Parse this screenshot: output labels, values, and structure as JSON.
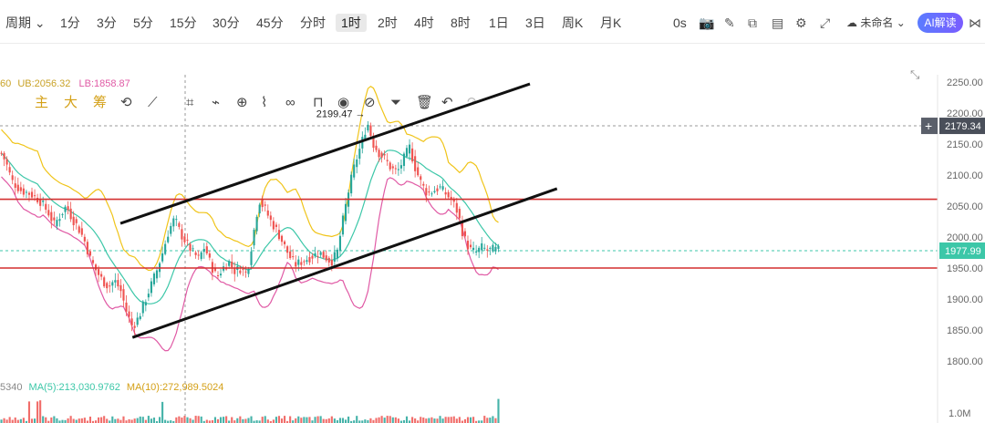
{
  "topbar": {
    "period_label": "周期",
    "timeframes": [
      "1分",
      "3分",
      "5分",
      "15分",
      "30分",
      "45分",
      "分时",
      "1时",
      "2时",
      "4时",
      "8时",
      "1日",
      "3日",
      "周K",
      "月K"
    ],
    "active_timeframe": "1时",
    "countdown": "0s",
    "chart_name": "未命名",
    "ai_label": "AI解读"
  },
  "toolbar": {
    "indicators": [
      "主",
      "大",
      "筹"
    ]
  },
  "legends": {
    "bb_period": "60",
    "bb_ub_label": "UB:",
    "bb_ub": "2056.32",
    "bb_lb_label": "LB:",
    "bb_lb": "1858.87",
    "vol_prefix": "5340",
    "ma5_label": "MA(5):",
    "ma5": "213,030.9762",
    "ma10_label": "MA(10):",
    "ma10": "272,989.5024"
  },
  "colors": {
    "up": "#26a69a",
    "down": "#ef5350",
    "upper_band": "#f0c419",
    "lower_band": "#e05aa5",
    "mid_band": "#3cc7a8",
    "support_resistance": "#d32f2f",
    "channel": "#111111"
  },
  "chart_data": {
    "type": "candlestick",
    "yaxis": {
      "min": 1770,
      "max": 2270,
      "ticks": [
        2250,
        2200,
        2150,
        2100,
        2050,
        2000,
        1950,
        1900,
        1850,
        1800
      ]
    },
    "crosshair_price": "2179.34",
    "last_price": "1977.99",
    "high_annotation": "2199.47",
    "high_value": 2199.47,
    "horizontal_lines": [
      2061,
      1950
    ],
    "channel_lines": [
      {
        "from": [
          0.2,
          2022
        ],
        "to": [
          0.88,
          2247
        ]
      },
      {
        "from": [
          0.22,
          1838
        ],
        "to": [
          0.925,
          2078
        ]
      }
    ],
    "volume_axis_label": "1.0M",
    "price_path": [
      [
        0.0,
        2140
      ],
      [
        0.01,
        2120
      ],
      [
        0.02,
        2090
      ],
      [
        0.035,
        2075
      ],
      [
        0.05,
        2070
      ],
      [
        0.065,
        2060
      ],
      [
        0.08,
        2040
      ],
      [
        0.09,
        2020
      ],
      [
        0.1,
        2035
      ],
      [
        0.11,
        2050
      ],
      [
        0.12,
        2030
      ],
      [
        0.13,
        2015
      ],
      [
        0.14,
        1995
      ],
      [
        0.15,
        1965
      ],
      [
        0.16,
        1945
      ],
      [
        0.17,
        1930
      ],
      [
        0.18,
        1920
      ],
      [
        0.19,
        1930
      ],
      [
        0.2,
        1915
      ],
      [
        0.21,
        1880
      ],
      [
        0.22,
        1855
      ],
      [
        0.23,
        1870
      ],
      [
        0.24,
        1895
      ],
      [
        0.25,
        1920
      ],
      [
        0.26,
        1945
      ],
      [
        0.27,
        1975
      ],
      [
        0.28,
        2010
      ],
      [
        0.29,
        2030
      ],
      [
        0.3,
        2005
      ],
      [
        0.31,
        1990
      ],
      [
        0.32,
        1975
      ],
      [
        0.33,
        1965
      ],
      [
        0.34,
        1985
      ],
      [
        0.35,
        1955
      ],
      [
        0.36,
        1935
      ],
      [
        0.37,
        1950
      ],
      [
        0.38,
        1960
      ],
      [
        0.39,
        1945
      ],
      [
        0.4,
        1950
      ],
      [
        0.41,
        1940
      ],
      [
        0.42,
        2000
      ],
      [
        0.43,
        2060
      ],
      [
        0.44,
        2045
      ],
      [
        0.45,
        2025
      ],
      [
        0.46,
        2010
      ],
      [
        0.47,
        1990
      ],
      [
        0.48,
        1970
      ],
      [
        0.49,
        1955
      ],
      [
        0.5,
        1960
      ],
      [
        0.51,
        1965
      ],
      [
        0.52,
        1970
      ],
      [
        0.53,
        1975
      ],
      [
        0.54,
        1968
      ],
      [
        0.55,
        1960
      ],
      [
        0.56,
        1975
      ],
      [
        0.57,
        2030
      ],
      [
        0.58,
        2080
      ],
      [
        0.59,
        2120
      ],
      [
        0.6,
        2150
      ],
      [
        0.61,
        2185
      ],
      [
        0.62,
        2150
      ],
      [
        0.63,
        2135
      ],
      [
        0.64,
        2125
      ],
      [
        0.65,
        2110
      ],
      [
        0.66,
        2105
      ],
      [
        0.67,
        2125
      ],
      [
        0.68,
        2145
      ],
      [
        0.69,
        2110
      ],
      [
        0.7,
        2085
      ],
      [
        0.71,
        2070
      ],
      [
        0.72,
        2075
      ],
      [
        0.73,
        2080
      ],
      [
        0.74,
        2070
      ],
      [
        0.75,
        2060
      ],
      [
        0.76,
        2040
      ],
      [
        0.77,
        2000
      ],
      [
        0.78,
        1980
      ],
      [
        0.79,
        1975
      ],
      [
        0.8,
        1983
      ],
      [
        0.81,
        1978
      ],
      [
        0.82,
        1980
      ],
      [
        0.83,
        1978
      ]
    ]
  }
}
